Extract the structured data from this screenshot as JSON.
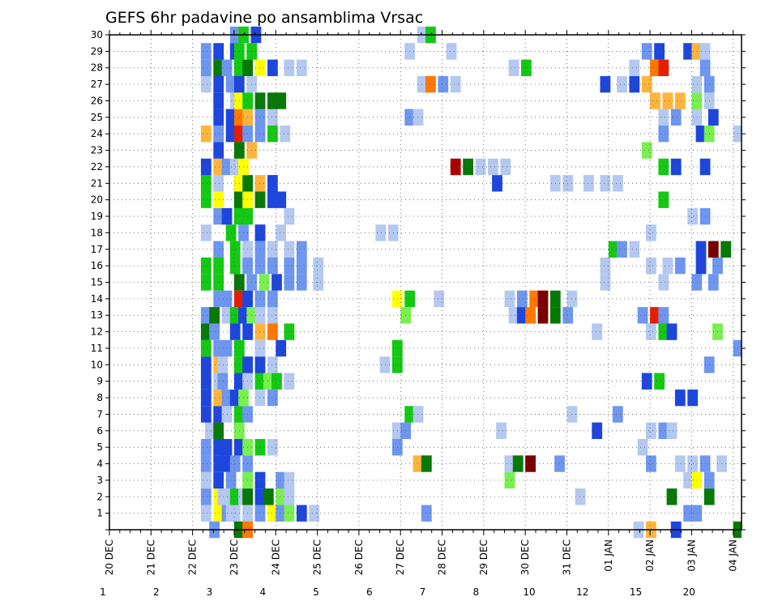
{
  "chart_data": {
    "type": "heatmap",
    "title": "GEFS 6hr padavine po ansamblima Vrsac",
    "x_ticks": [
      "20 DEC",
      "21 DEC",
      "22 DEC",
      "23 DEC",
      "24 DEC",
      "25 DEC",
      "26 DEC",
      "27 DEC",
      "28 DEC",
      "29 DEC",
      "30 DEC",
      "31 DEC",
      "01 JAN",
      "02 JAN",
      "03 JAN",
      "04 JAN"
    ],
    "x_range_days": [
      0,
      15.2
    ],
    "y_ticks": [
      "1",
      "2",
      "3",
      "4",
      "5",
      "6",
      "7",
      "8",
      "9",
      "10",
      "11",
      "12",
      "13",
      "14",
      "15",
      "16",
      "17",
      "18",
      "19",
      "20",
      "21",
      "22",
      "23",
      "24",
      "25",
      "26",
      "27",
      "28",
      "29",
      "30"
    ],
    "y_range": [
      0,
      30
    ],
    "grid": true,
    "colorbar": {
      "position": "bottom",
      "boundaries": [
        "1",
        "2",
        "3",
        "4",
        "5",
        "6",
        "7",
        "8",
        "10",
        "12",
        "15",
        "20"
      ],
      "colors": [
        "#b4c8f0",
        "#6e96ee",
        "#1e46dc",
        "#78f050",
        "#14c814",
        "#087808",
        "#ffff00",
        "#ffb43c",
        "#ff7800",
        "#e61e00",
        "#aa0000",
        "#780000"
      ]
    },
    "cells": [
      [
        2.2,
        1,
        0
      ],
      [
        2.5,
        1,
        6
      ],
      [
        2.7,
        1,
        1
      ],
      [
        2.8,
        1,
        0
      ],
      [
        2.9,
        1,
        0
      ],
      [
        3.2,
        1,
        0
      ],
      [
        3.5,
        1,
        1
      ],
      [
        3.8,
        1,
        6
      ],
      [
        4.0,
        1,
        1
      ],
      [
        4.2,
        1,
        3
      ],
      [
        4.5,
        1,
        2
      ],
      [
        4.8,
        1,
        0
      ],
      [
        7.5,
        1,
        1
      ],
      [
        13.8,
        1,
        1
      ],
      [
        14.0,
        1,
        1
      ],
      [
        2.2,
        2,
        1
      ],
      [
        2.5,
        2,
        6
      ],
      [
        2.6,
        2,
        0
      ],
      [
        2.8,
        2,
        0
      ],
      [
        2.9,
        2,
        4
      ],
      [
        3.1,
        2,
        0
      ],
      [
        3.2,
        2,
        5
      ],
      [
        3.5,
        2,
        2
      ],
      [
        3.7,
        2,
        5
      ],
      [
        4.0,
        2,
        3
      ],
      [
        4.2,
        2,
        0
      ],
      [
        11.2,
        2,
        0
      ],
      [
        13.4,
        2,
        5
      ],
      [
        14.3,
        2,
        5
      ],
      [
        2.2,
        3,
        0
      ],
      [
        2.5,
        3,
        2
      ],
      [
        2.8,
        3,
        1
      ],
      [
        3.2,
        3,
        3
      ],
      [
        3.5,
        3,
        2
      ],
      [
        4.0,
        3,
        1
      ],
      [
        4.2,
        3,
        0
      ],
      [
        9.5,
        3,
        3
      ],
      [
        13.8,
        3,
        0
      ],
      [
        14.0,
        3,
        6
      ],
      [
        14.3,
        3,
        1
      ],
      [
        15.2,
        3,
        0
      ],
      [
        2.2,
        4,
        1
      ],
      [
        2.5,
        4,
        2
      ],
      [
        2.7,
        4,
        2
      ],
      [
        2.9,
        4,
        1
      ],
      [
        3.2,
        4,
        1
      ],
      [
        7.3,
        4,
        7
      ],
      [
        7.5,
        4,
        5
      ],
      [
        9.5,
        4,
        0
      ],
      [
        9.7,
        4,
        5
      ],
      [
        10.0,
        4,
        11
      ],
      [
        10.7,
        4,
        1
      ],
      [
        12.9,
        4,
        1
      ],
      [
        13.6,
        4,
        0
      ],
      [
        13.9,
        4,
        0
      ],
      [
        14.2,
        4,
        1
      ],
      [
        14.6,
        4,
        0
      ],
      [
        2.2,
        5,
        1
      ],
      [
        2.5,
        5,
        2
      ],
      [
        2.7,
        5,
        2
      ],
      [
        3.0,
        5,
        2
      ],
      [
        3.2,
        5,
        3
      ],
      [
        3.5,
        5,
        4
      ],
      [
        3.8,
        5,
        0
      ],
      [
        6.8,
        5,
        1
      ],
      [
        12.7,
        5,
        0
      ],
      [
        2.3,
        6,
        0
      ],
      [
        2.5,
        6,
        5
      ],
      [
        3.0,
        6,
        3
      ],
      [
        6.8,
        6,
        0
      ],
      [
        7.0,
        6,
        1
      ],
      [
        9.3,
        6,
        0
      ],
      [
        11.6,
        6,
        2
      ],
      [
        12.9,
        6,
        0
      ],
      [
        13.2,
        6,
        1
      ],
      [
        13.4,
        6,
        0
      ],
      [
        2.2,
        7,
        2
      ],
      [
        2.5,
        7,
        2
      ],
      [
        2.7,
        7,
        0
      ],
      [
        3.0,
        7,
        4
      ],
      [
        3.2,
        7,
        1
      ],
      [
        7.1,
        7,
        4
      ],
      [
        7.3,
        7,
        0
      ],
      [
        11.0,
        7,
        0
      ],
      [
        12.1,
        7,
        1
      ],
      [
        2.2,
        8,
        2
      ],
      [
        2.5,
        8,
        7
      ],
      [
        2.7,
        8,
        1
      ],
      [
        2.9,
        8,
        2
      ],
      [
        3.1,
        8,
        3
      ],
      [
        3.5,
        8,
        0
      ],
      [
        3.8,
        8,
        1
      ],
      [
        13.6,
        8,
        2
      ],
      [
        13.9,
        8,
        2
      ],
      [
        2.2,
        9,
        2
      ],
      [
        2.5,
        9,
        0
      ],
      [
        2.6,
        9,
        1
      ],
      [
        3.0,
        9,
        2
      ],
      [
        3.2,
        9,
        0
      ],
      [
        3.5,
        9,
        4
      ],
      [
        3.7,
        9,
        3
      ],
      [
        3.9,
        9,
        4
      ],
      [
        4.2,
        9,
        0
      ],
      [
        12.8,
        9,
        2
      ],
      [
        13.1,
        9,
        4
      ],
      [
        2.2,
        10,
        2
      ],
      [
        2.5,
        10,
        7
      ],
      [
        2.6,
        10,
        0
      ],
      [
        3.0,
        10,
        4
      ],
      [
        3.2,
        10,
        2
      ],
      [
        3.5,
        10,
        2
      ],
      [
        3.8,
        10,
        0
      ],
      [
        6.5,
        10,
        0
      ],
      [
        6.8,
        10,
        4
      ],
      [
        14.3,
        10,
        1
      ],
      [
        2.2,
        11,
        4
      ],
      [
        2.5,
        11,
        1
      ],
      [
        2.7,
        11,
        1
      ],
      [
        3.0,
        11,
        4
      ],
      [
        3.5,
        11,
        0
      ],
      [
        4.0,
        11,
        2
      ],
      [
        6.8,
        11,
        4
      ],
      [
        15.0,
        11,
        1
      ],
      [
        2.2,
        12,
        5
      ],
      [
        2.4,
        12,
        1
      ],
      [
        2.9,
        12,
        2
      ],
      [
        3.2,
        12,
        2
      ],
      [
        3.5,
        12,
        7
      ],
      [
        3.8,
        12,
        8
      ],
      [
        4.2,
        12,
        4
      ],
      [
        11.6,
        12,
        0
      ],
      [
        12.9,
        12,
        0
      ],
      [
        13.2,
        12,
        4
      ],
      [
        13.4,
        12,
        2
      ],
      [
        14.5,
        12,
        3
      ],
      [
        2.2,
        13,
        1
      ],
      [
        2.4,
        13,
        5
      ],
      [
        2.7,
        13,
        0
      ],
      [
        2.9,
        13,
        4
      ],
      [
        3.1,
        13,
        2
      ],
      [
        3.3,
        13,
        3
      ],
      [
        3.5,
        13,
        0
      ],
      [
        3.8,
        13,
        0
      ],
      [
        7.0,
        13,
        3
      ],
      [
        9.6,
        13,
        0
      ],
      [
        9.8,
        13,
        2
      ],
      [
        10.0,
        13,
        8
      ],
      [
        10.3,
        13,
        11
      ],
      [
        10.6,
        13,
        5
      ],
      [
        10.9,
        13,
        1
      ],
      [
        12.7,
        13,
        1
      ],
      [
        13.0,
        13,
        9
      ],
      [
        13.2,
        13,
        1
      ],
      [
        2.5,
        14,
        1
      ],
      [
        2.7,
        14,
        1
      ],
      [
        3.0,
        14,
        9
      ],
      [
        3.2,
        14,
        2
      ],
      [
        3.5,
        14,
        1
      ],
      [
        3.8,
        14,
        1
      ],
      [
        6.8,
        14,
        6
      ],
      [
        7.1,
        14,
        4
      ],
      [
        7.8,
        14,
        0
      ],
      [
        9.5,
        14,
        0
      ],
      [
        9.8,
        14,
        1
      ],
      [
        10.1,
        14,
        8
      ],
      [
        10.3,
        14,
        11
      ],
      [
        10.6,
        14,
        5
      ],
      [
        11.0,
        14,
        0
      ],
      [
        2.2,
        15,
        4
      ],
      [
        2.5,
        15,
        4
      ],
      [
        3.0,
        15,
        5
      ],
      [
        3.3,
        15,
        1
      ],
      [
        3.6,
        15,
        3
      ],
      [
        3.9,
        15,
        2
      ],
      [
        4.2,
        15,
        1
      ],
      [
        4.5,
        15,
        1
      ],
      [
        4.9,
        15,
        0
      ],
      [
        11.8,
        15,
        0
      ],
      [
        13.2,
        15,
        0
      ],
      [
        14.0,
        15,
        1
      ],
      [
        14.4,
        15,
        1
      ],
      [
        2.2,
        16,
        4
      ],
      [
        2.5,
        16,
        4
      ],
      [
        2.9,
        16,
        4
      ],
      [
        3.2,
        16,
        1
      ],
      [
        3.5,
        16,
        1
      ],
      [
        3.8,
        16,
        1
      ],
      [
        4.2,
        16,
        1
      ],
      [
        4.5,
        16,
        1
      ],
      [
        4.9,
        16,
        0
      ],
      [
        11.8,
        16,
        0
      ],
      [
        12.9,
        16,
        0
      ],
      [
        13.3,
        16,
        0
      ],
      [
        13.6,
        16,
        1
      ],
      [
        14.1,
        16,
        2
      ],
      [
        14.5,
        16,
        1
      ],
      [
        2.5,
        17,
        1
      ],
      [
        2.9,
        17,
        4
      ],
      [
        3.2,
        17,
        0
      ],
      [
        3.5,
        17,
        1
      ],
      [
        3.8,
        17,
        0
      ],
      [
        4.2,
        17,
        0
      ],
      [
        4.5,
        17,
        1
      ],
      [
        12.0,
        17,
        4
      ],
      [
        12.2,
        17,
        1
      ],
      [
        12.5,
        17,
        0
      ],
      [
        14.1,
        17,
        2
      ],
      [
        14.4,
        17,
        11
      ],
      [
        14.7,
        17,
        5
      ],
      [
        2.2,
        18,
        0
      ],
      [
        2.8,
        18,
        4
      ],
      [
        3.1,
        18,
        1
      ],
      [
        3.5,
        18,
        2
      ],
      [
        4.0,
        18,
        0
      ],
      [
        6.4,
        18,
        0
      ],
      [
        6.7,
        18,
        0
      ],
      [
        12.9,
        18,
        0
      ],
      [
        2.5,
        19,
        1
      ],
      [
        2.7,
        19,
        2
      ],
      [
        3.0,
        19,
        4
      ],
      [
        3.2,
        19,
        4
      ],
      [
        4.2,
        19,
        0
      ],
      [
        13.9,
        19,
        0
      ],
      [
        14.2,
        19,
        1
      ],
      [
        2.2,
        20,
        4
      ],
      [
        2.5,
        20,
        6
      ],
      [
        3.0,
        20,
        5
      ],
      [
        3.2,
        20,
        6
      ],
      [
        3.5,
        20,
        5
      ],
      [
        3.8,
        20,
        2
      ],
      [
        4.0,
        20,
        2
      ],
      [
        13.2,
        20,
        4
      ],
      [
        2.2,
        21,
        4
      ],
      [
        2.5,
        21,
        0
      ],
      [
        3.0,
        21,
        6
      ],
      [
        3.2,
        21,
        5
      ],
      [
        3.5,
        21,
        7
      ],
      [
        3.8,
        21,
        2
      ],
      [
        9.2,
        21,
        2
      ],
      [
        10.6,
        21,
        0
      ],
      [
        10.9,
        21,
        0
      ],
      [
        11.4,
        21,
        0
      ],
      [
        11.8,
        21,
        0
      ],
      [
        12.1,
        21,
        0
      ],
      [
        2.2,
        22,
        2
      ],
      [
        2.5,
        22,
        7
      ],
      [
        2.7,
        22,
        1
      ],
      [
        2.9,
        22,
        0
      ],
      [
        3.1,
        22,
        6
      ],
      [
        8.2,
        22,
        10
      ],
      [
        8.5,
        22,
        5
      ],
      [
        8.8,
        22,
        0
      ],
      [
        9.1,
        22,
        0
      ],
      [
        9.4,
        22,
        0
      ],
      [
        13.2,
        22,
        4
      ],
      [
        13.5,
        22,
        2
      ],
      [
        14.2,
        22,
        2
      ],
      [
        2.5,
        23,
        2
      ],
      [
        3.0,
        23,
        5
      ],
      [
        3.3,
        23,
        7
      ],
      [
        12.8,
        23,
        3
      ],
      [
        2.2,
        24,
        7
      ],
      [
        2.5,
        24,
        1
      ],
      [
        2.8,
        24,
        2
      ],
      [
        3.0,
        24,
        9
      ],
      [
        3.2,
        24,
        1
      ],
      [
        3.5,
        24,
        1
      ],
      [
        3.8,
        24,
        4
      ],
      [
        4.1,
        24,
        0
      ],
      [
        13.2,
        24,
        1
      ],
      [
        14.1,
        24,
        2
      ],
      [
        14.3,
        24,
        3
      ],
      [
        15.0,
        24,
        0
      ],
      [
        2.5,
        25,
        2
      ],
      [
        2.8,
        25,
        2
      ],
      [
        3.0,
        25,
        8
      ],
      [
        3.2,
        25,
        7
      ],
      [
        3.5,
        25,
        1
      ],
      [
        3.8,
        25,
        0
      ],
      [
        7.1,
        25,
        1
      ],
      [
        7.3,
        25,
        0
      ],
      [
        13.2,
        25,
        0
      ],
      [
        13.5,
        25,
        1
      ],
      [
        14.0,
        25,
        0
      ],
      [
        14.4,
        25,
        2
      ],
      [
        2.5,
        26,
        2
      ],
      [
        2.9,
        26,
        0
      ],
      [
        3.0,
        26,
        6
      ],
      [
        3.2,
        26,
        4
      ],
      [
        3.5,
        26,
        5
      ],
      [
        3.8,
        26,
        5
      ],
      [
        4.0,
        26,
        5
      ],
      [
        13.0,
        26,
        7
      ],
      [
        13.3,
        26,
        7
      ],
      [
        13.6,
        26,
        7
      ],
      [
        14.0,
        26,
        3
      ],
      [
        14.3,
        26,
        0
      ],
      [
        2.2,
        27,
        0
      ],
      [
        2.5,
        27,
        2
      ],
      [
        2.8,
        27,
        1
      ],
      [
        3.0,
        27,
        2
      ],
      [
        3.3,
        27,
        0
      ],
      [
        7.4,
        27,
        0
      ],
      [
        7.6,
        27,
        8
      ],
      [
        7.9,
        27,
        1
      ],
      [
        8.2,
        27,
        0
      ],
      [
        11.8,
        27,
        2
      ],
      [
        12.2,
        27,
        0
      ],
      [
        12.5,
        27,
        2
      ],
      [
        12.8,
        27,
        7
      ],
      [
        14.0,
        27,
        0
      ],
      [
        14.3,
        27,
        1
      ],
      [
        2.2,
        28,
        1
      ],
      [
        2.5,
        28,
        5
      ],
      [
        2.7,
        28,
        1
      ],
      [
        3.0,
        28,
        4
      ],
      [
        3.2,
        28,
        5
      ],
      [
        3.5,
        28,
        6
      ],
      [
        3.8,
        28,
        2
      ],
      [
        4.2,
        28,
        0
      ],
      [
        4.5,
        28,
        0
      ],
      [
        9.6,
        28,
        0
      ],
      [
        9.9,
        28,
        4
      ],
      [
        12.5,
        28,
        0
      ],
      [
        13.0,
        28,
        8
      ],
      [
        13.2,
        28,
        9
      ],
      [
        14.2,
        28,
        1
      ],
      [
        2.2,
        29,
        1
      ],
      [
        2.5,
        29,
        2
      ],
      [
        2.9,
        29,
        2
      ],
      [
        3.0,
        29,
        4
      ],
      [
        3.3,
        29,
        4
      ],
      [
        7.1,
        29,
        0
      ],
      [
        8.1,
        29,
        0
      ],
      [
        12.8,
        29,
        1
      ],
      [
        13.1,
        29,
        2
      ],
      [
        13.8,
        29,
        2
      ],
      [
        14.0,
        29,
        7
      ],
      [
        14.2,
        29,
        0
      ],
      [
        2.9,
        30,
        1
      ],
      [
        3.1,
        30,
        4
      ],
      [
        3.4,
        30,
        2
      ],
      [
        7.4,
        30,
        0
      ],
      [
        7.6,
        30,
        4
      ],
      [
        2.4,
        0,
        1
      ],
      [
        3.0,
        0,
        5
      ],
      [
        3.2,
        0,
        8
      ],
      [
        12.6,
        0,
        0
      ],
      [
        12.9,
        0,
        7
      ],
      [
        13.5,
        0,
        2
      ],
      [
        15.0,
        0,
        5
      ]
    ]
  }
}
